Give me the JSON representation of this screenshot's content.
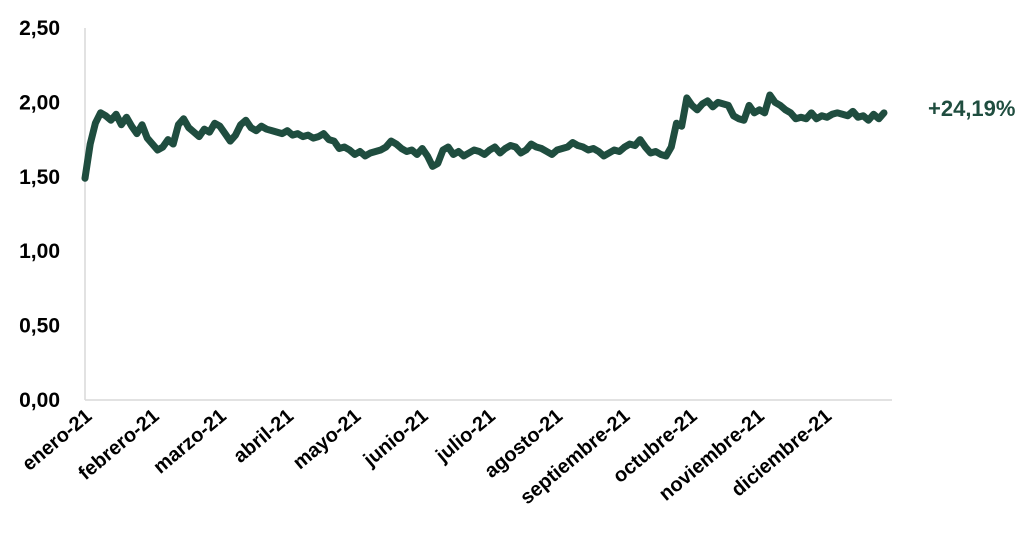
{
  "chart_data": {
    "type": "line",
    "title": "",
    "xlabel": "",
    "ylabel": "",
    "ylim": [
      0,
      2.5
    ],
    "yticks": [
      "0,00",
      "0,50",
      "1,00",
      "1,50",
      "2,00",
      "2,50"
    ],
    "ytick_values": [
      0,
      0.5,
      1,
      1.5,
      2,
      2.5
    ],
    "xticks": [
      "enero-21",
      "febrero-21",
      "marzo-21",
      "abril-21",
      "mayo-21",
      "junio-21",
      "julio-21",
      "agosto-21",
      "septiembre-21",
      "octubre-21",
      "noviembre-21",
      "diciembre-21"
    ],
    "grid": false,
    "legend": "none",
    "line_color": "#1f4d3f",
    "annotation": "+24,19%",
    "series": [
      {
        "values": [
          1.49,
          1.72,
          1.86,
          1.93,
          1.91,
          1.88,
          1.92,
          1.85,
          1.9,
          1.84,
          1.79,
          1.85,
          1.76,
          1.72,
          1.68,
          1.7,
          1.75,
          1.72,
          1.85,
          1.89,
          1.83,
          1.8,
          1.77,
          1.82,
          1.8,
          1.86,
          1.84,
          1.79,
          1.74,
          1.78,
          1.85,
          1.88,
          1.83,
          1.81,
          1.84,
          1.82,
          1.81,
          1.8,
          1.79,
          1.81,
          1.78,
          1.79,
          1.77,
          1.78,
          1.76,
          1.77,
          1.79,
          1.75,
          1.74,
          1.69,
          1.7,
          1.68,
          1.65,
          1.67,
          1.64,
          1.66,
          1.67,
          1.68,
          1.7,
          1.74,
          1.72,
          1.69,
          1.67,
          1.68,
          1.65,
          1.69,
          1.64,
          1.57,
          1.59,
          1.68,
          1.7,
          1.65,
          1.67,
          1.64,
          1.66,
          1.68,
          1.67,
          1.65,
          1.68,
          1.7,
          1.66,
          1.69,
          1.71,
          1.7,
          1.66,
          1.68,
          1.72,
          1.7,
          1.69,
          1.67,
          1.65,
          1.68,
          1.69,
          1.7,
          1.73,
          1.71,
          1.7,
          1.68,
          1.69,
          1.67,
          1.64,
          1.66,
          1.68,
          1.67,
          1.7,
          1.72,
          1.71,
          1.75,
          1.7,
          1.66,
          1.67,
          1.65,
          1.64,
          1.7,
          1.86,
          1.84,
          2.03,
          1.98,
          1.95,
          1.99,
          2.01,
          1.97,
          2.0,
          1.99,
          1.98,
          1.91,
          1.89,
          1.88,
          1.98,
          1.93,
          1.95,
          1.93,
          2.05,
          2.0,
          1.98,
          1.95,
          1.93,
          1.89,
          1.9,
          1.89,
          1.93,
          1.89,
          1.91,
          1.9,
          1.92,
          1.93,
          1.92,
          1.91,
          1.94,
          1.9,
          1.91,
          1.88,
          1.92,
          1.89,
          1.93
        ]
      }
    ]
  }
}
